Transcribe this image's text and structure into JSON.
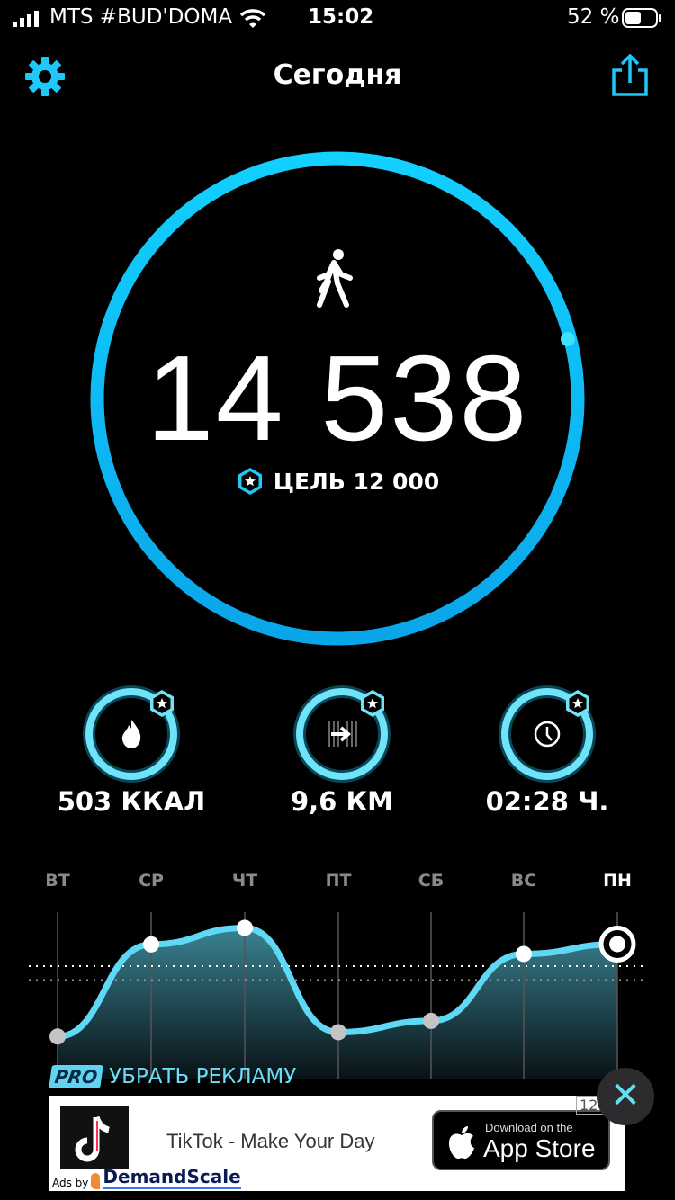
{
  "status_bar": {
    "carrier": "MTS #BUD'DOMA",
    "time": "15:02",
    "battery": "52 %",
    "signal_icon": "signal-bars-icon",
    "wifi_icon": "wifi-icon",
    "battery_icon": "battery-icon"
  },
  "header": {
    "title": "Сегодня",
    "settings_icon": "gear-icon",
    "share_icon": "share-icon"
  },
  "main": {
    "steps": "14 538",
    "steps_icon": "walking-icon",
    "goal_label": "ЦЕЛЬ 12 000",
    "goal_icon": "hexagon-star-icon",
    "ring_progress": 1.0,
    "accent": "#1ec8f8"
  },
  "metrics": [
    {
      "label": "503 ККАЛ",
      "icon": "flame-icon"
    },
    {
      "label": "9,6 КМ",
      "icon": "distance-arrow-icon"
    },
    {
      "label": "02:28 Ч.",
      "icon": "clock-icon"
    }
  ],
  "chart_data": {
    "type": "area",
    "categories": [
      "ВТ",
      "СР",
      "ЧТ",
      "ПТ",
      "СБ",
      "ВС",
      "ПН"
    ],
    "values": [
      3900,
      14500,
      16400,
      4400,
      5700,
      13400,
      14538
    ],
    "goal_line": 12000,
    "secondary_line": 10400,
    "selected": "ПН",
    "ylim": [
      0,
      18000
    ]
  },
  "ad": {
    "remove_ads_badge": "PRO",
    "remove_ads_label": "УБРАТЬ РЕКЛАМУ",
    "title": "TikTok - Make Your Day",
    "store_small": "Download on the",
    "store_big": "App Store",
    "ads_by": "Ads by",
    "provider": "DemandScale",
    "age": "12+",
    "close_icon": "close-icon"
  }
}
